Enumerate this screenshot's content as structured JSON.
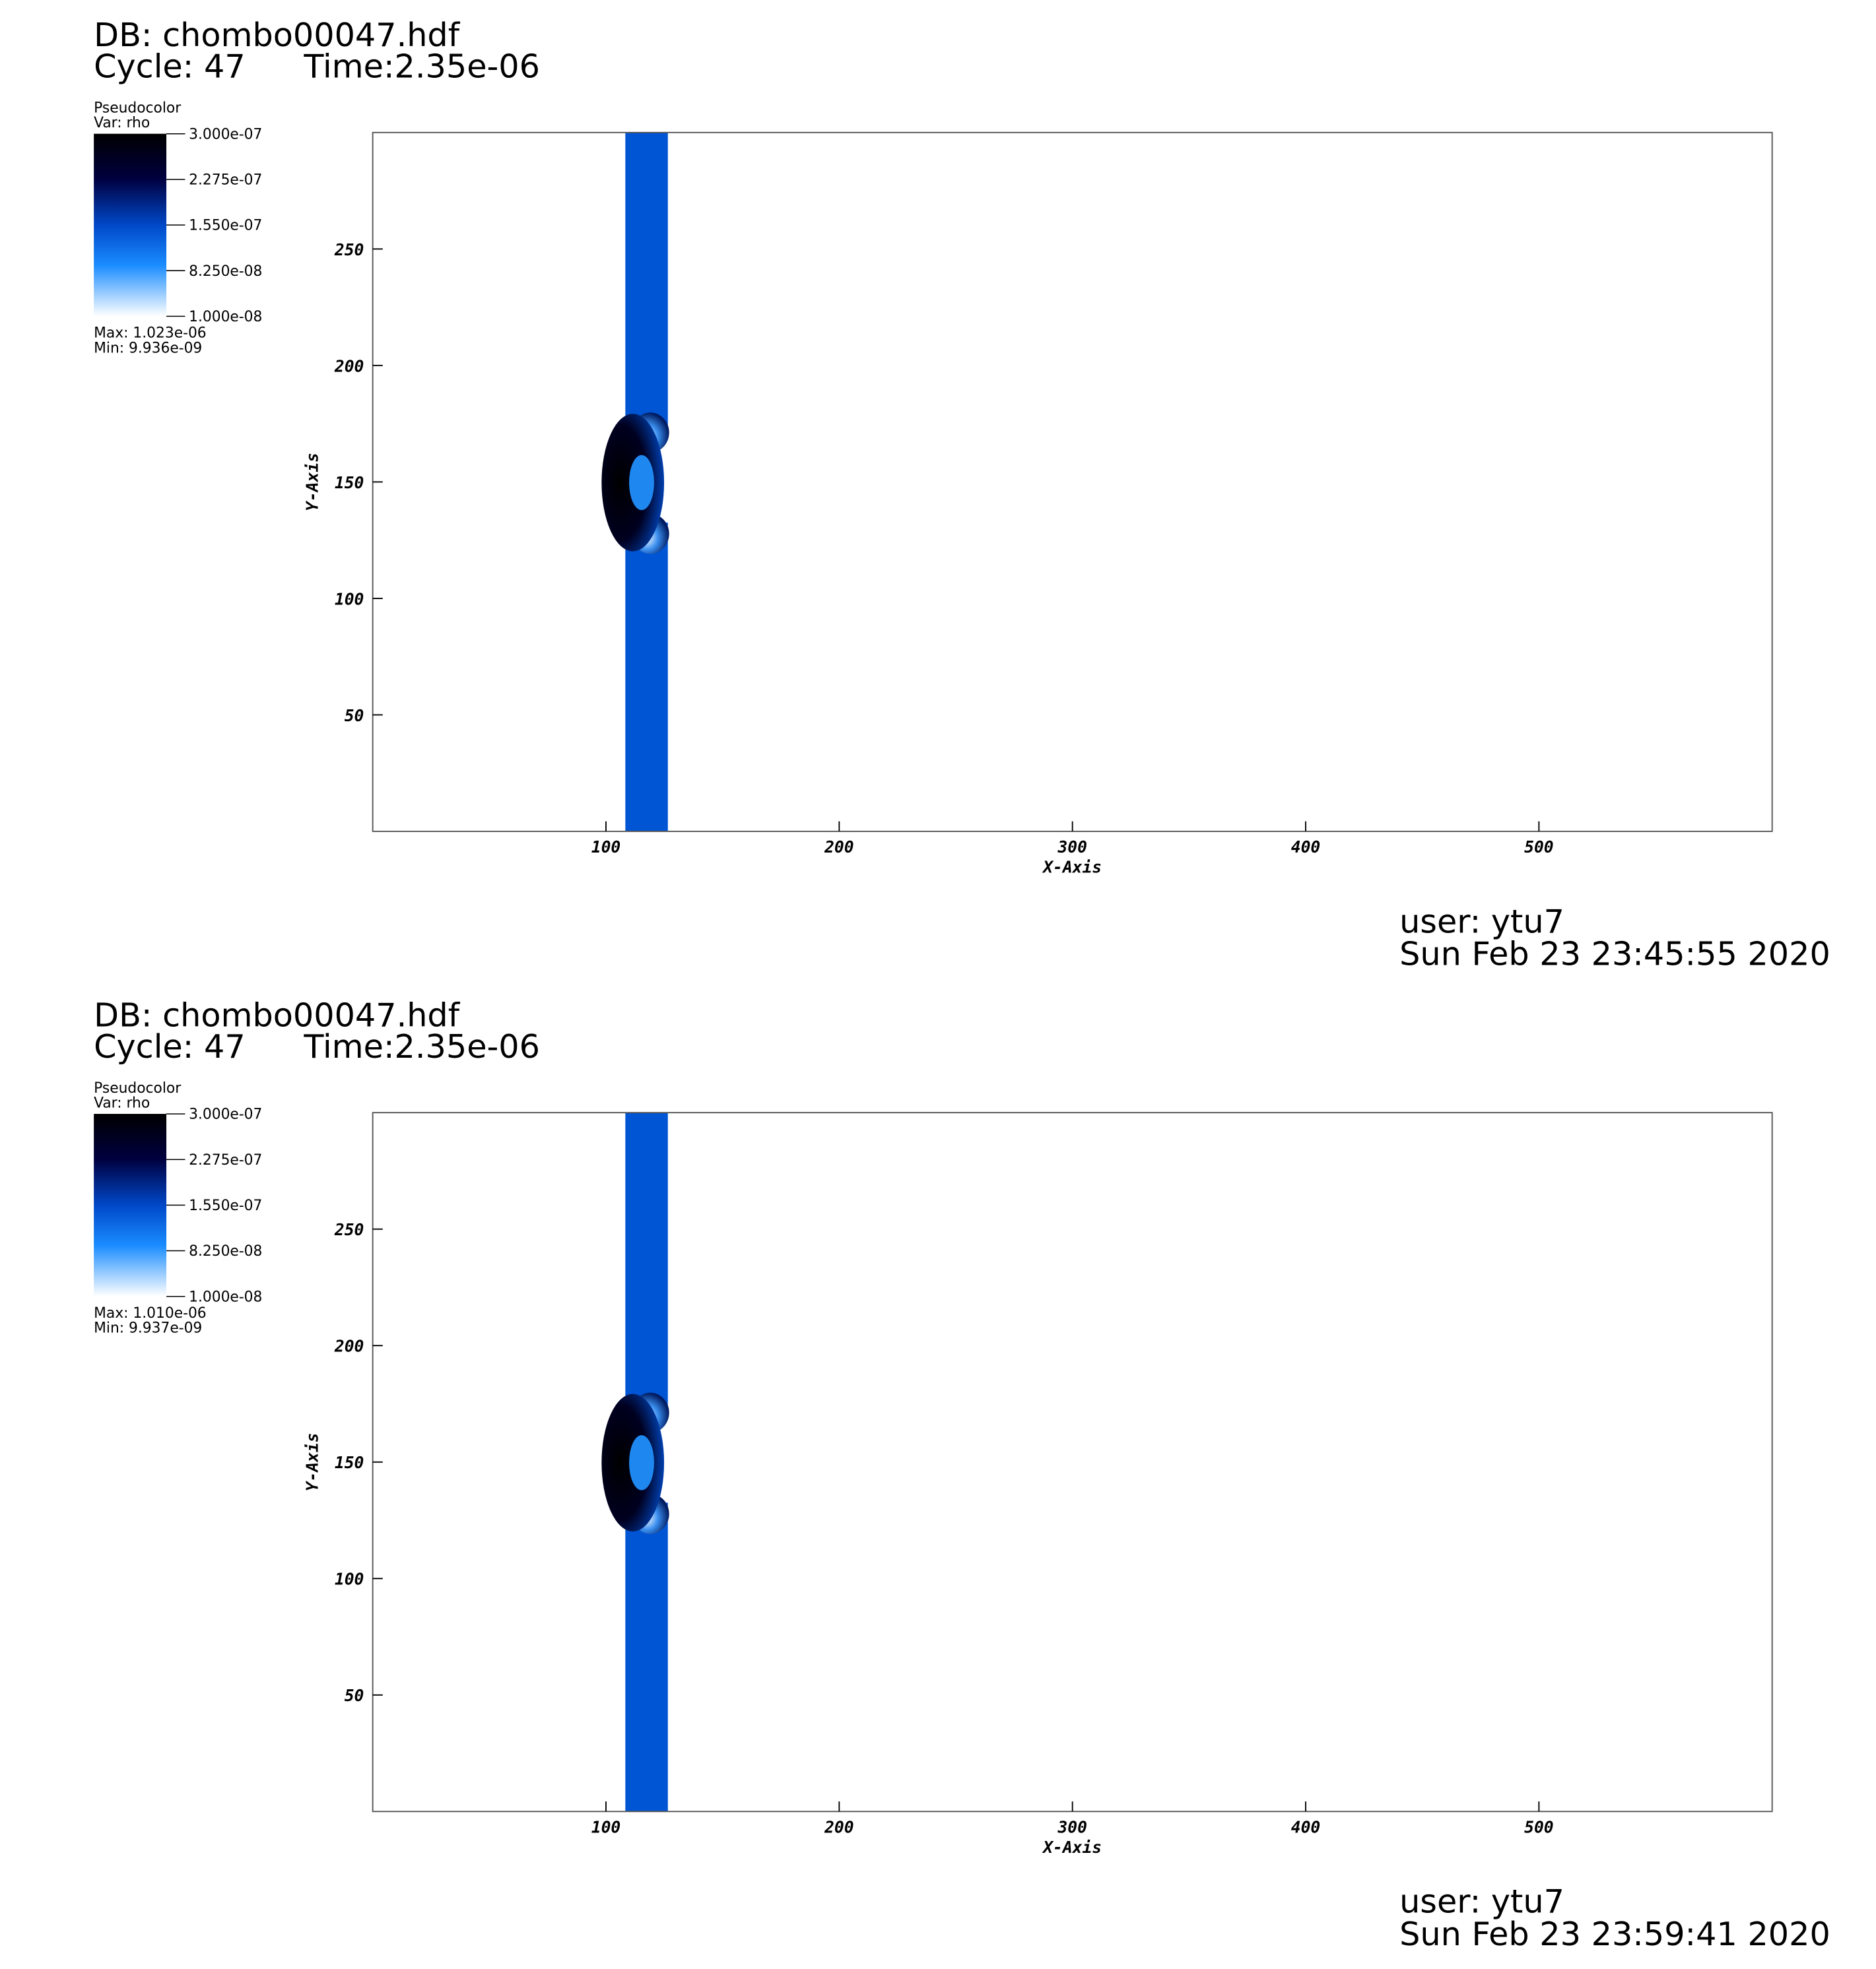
{
  "chart_data": [
    {
      "type": "pseudocolor",
      "title": "DB: chombo00047.hdf",
      "cycle": "Cycle: 47",
      "time": "Time:2.35e-06",
      "legend": {
        "title": "Pseudocolor",
        "var": "Var: rho",
        "max": "Max:  1.023e-06",
        "min": "Min:  9.936e-09",
        "lim": [
          1e-08,
          3e-07
        ],
        "ticks": [
          {
            "value": 3e-07,
            "label": "3.000e-07"
          },
          {
            "value": 2.275e-07,
            "label": "2.275e-07"
          },
          {
            "value": 1.55e-07,
            "label": "1.550e-07"
          },
          {
            "value": 8.25e-08,
            "label": "8.250e-08"
          },
          {
            "value": 1e-08,
            "label": "1.000e-08"
          }
        ]
      },
      "xlabel": "X-Axis",
      "ylabel": "Y-Axis",
      "xlim": [
        0,
        600
      ],
      "ylim": [
        0,
        300
      ],
      "xticks": [
        100,
        200,
        300,
        400,
        500
      ],
      "yticks": [
        50,
        100,
        150,
        200,
        250
      ],
      "user": "user: ytu7",
      "date": "Sun Feb 23 23:45:55 2020"
    },
    {
      "type": "pseudocolor",
      "title": "DB: chombo00047.hdf",
      "cycle": "Cycle: 47",
      "time": "Time:2.35e-06",
      "legend": {
        "title": "Pseudocolor",
        "var": "Var: rho",
        "max": "Max:  1.010e-06",
        "min": "Min:  9.937e-09",
        "lim": [
          1e-08,
          3e-07
        ],
        "ticks": [
          {
            "value": 3e-07,
            "label": "3.000e-07"
          },
          {
            "value": 2.275e-07,
            "label": "2.275e-07"
          },
          {
            "value": 1.55e-07,
            "label": "1.550e-07"
          },
          {
            "value": 8.25e-08,
            "label": "8.250e-08"
          },
          {
            "value": 1e-08,
            "label": "1.000e-08"
          }
        ]
      },
      "xlabel": "X-Axis",
      "ylabel": "Y-Axis",
      "xlim": [
        0,
        600
      ],
      "ylim": [
        0,
        300
      ],
      "xticks": [
        100,
        200,
        300,
        400,
        500
      ],
      "yticks": [
        50,
        100,
        150,
        200,
        250
      ],
      "user": "user: ytu7",
      "date": "Sun Feb 23 23:59:41 2020"
    }
  ]
}
